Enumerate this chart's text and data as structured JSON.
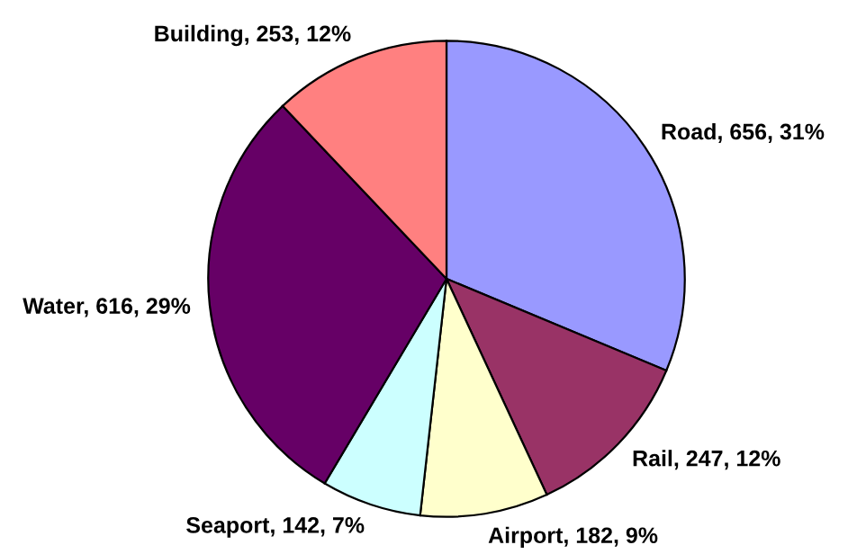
{
  "chart_data": {
    "type": "pie",
    "categories": [
      "Road",
      "Rail",
      "Airport",
      "Seaport",
      "Water",
      "Building"
    ],
    "values": [
      656,
      247,
      182,
      142,
      616,
      253
    ],
    "value_labels": [
      "656, 31%",
      "247, 12%",
      "182, 9%",
      "142, 7%",
      "616, 29%",
      "253, 12%"
    ],
    "colors": [
      "#9999ff",
      "#993366",
      "#ffffcc",
      "#ccffff",
      "#660066",
      "#ff8080"
    ],
    "legend": false
  }
}
